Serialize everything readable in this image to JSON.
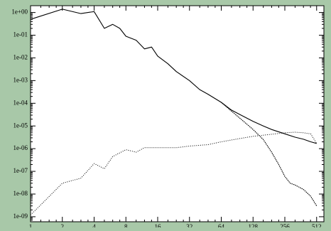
{
  "chart_data": {
    "type": "line",
    "title": "",
    "xlabel": "",
    "ylabel": "",
    "x_scale": "log2",
    "y_scale": "log10",
    "xlim": [
      1,
      600
    ],
    "ylim": [
      6e-10,
      2.0
    ],
    "x_ticks": [
      1,
      2,
      4,
      8,
      16,
      32,
      64,
      128,
      256,
      512
    ],
    "x_tick_labels": [
      "1",
      "2",
      "4",
      "8",
      "16",
      "32",
      "64",
      "128",
      "256",
      "512"
    ],
    "y_ticks": [
      1e-09,
      1e-08,
      1e-07,
      1e-06,
      1e-05,
      0.0001,
      0.001,
      0.01,
      0.1,
      1
    ],
    "y_tick_labels": [
      "1e-09",
      "1e-08",
      "1e-07",
      "1e-06",
      "1e-05",
      "1e-04",
      "1e-03",
      "1e-02",
      "1e-01",
      "1e+00"
    ],
    "grid": false,
    "legend": "none",
    "series": [
      {
        "style": "solid",
        "x": [
          1,
          2,
          3,
          4,
          5,
          6,
          7,
          8,
          10,
          12,
          14,
          16,
          20,
          24,
          32,
          40,
          48,
          64,
          80,
          96,
          128,
          160,
          192,
          256,
          320,
          384,
          450,
          512
        ],
        "y": [
          0.5,
          1.4,
          0.9,
          1.1,
          0.2,
          0.3,
          0.2,
          0.09,
          0.06,
          0.025,
          0.03,
          0.012,
          0.0055,
          0.0025,
          0.001,
          0.0004,
          0.00025,
          0.00011,
          5e-05,
          3.2e-05,
          1.6e-05,
          1e-05,
          7e-06,
          4.5e-06,
          3.2e-06,
          2.6e-06,
          2e-06,
          1.7e-06
        ]
      },
      {
        "style": "dashed",
        "x": [
          64,
          80,
          96,
          128,
          160,
          192,
          224,
          256,
          288,
          320,
          384,
          450,
          512
        ],
        "y": [
          0.00011,
          4.5e-05,
          2.2e-05,
          7e-06,
          2.5e-06,
          7e-07,
          2e-07,
          6e-08,
          3e-08,
          2.5e-08,
          1.6e-08,
          8e-09,
          3e-09
        ]
      },
      {
        "style": "dotted",
        "x": [
          1,
          2,
          3,
          4,
          5,
          6,
          8,
          10,
          12,
          16,
          24,
          32,
          48,
          64,
          96,
          128,
          192,
          256,
          320,
          384,
          450,
          512
        ],
        "y": [
          1.2e-09,
          3e-08,
          5e-08,
          2.2e-07,
          1.3e-07,
          4.5e-07,
          9e-07,
          7e-07,
          1.1e-06,
          1.1e-06,
          1.1e-06,
          1.3e-06,
          1.5e-06,
          2e-06,
          2.8e-06,
          3.5e-06,
          4.3e-06,
          5e-06,
          5.3e-06,
          5e-06,
          4.5e-06,
          1.7e-06
        ]
      }
    ]
  }
}
